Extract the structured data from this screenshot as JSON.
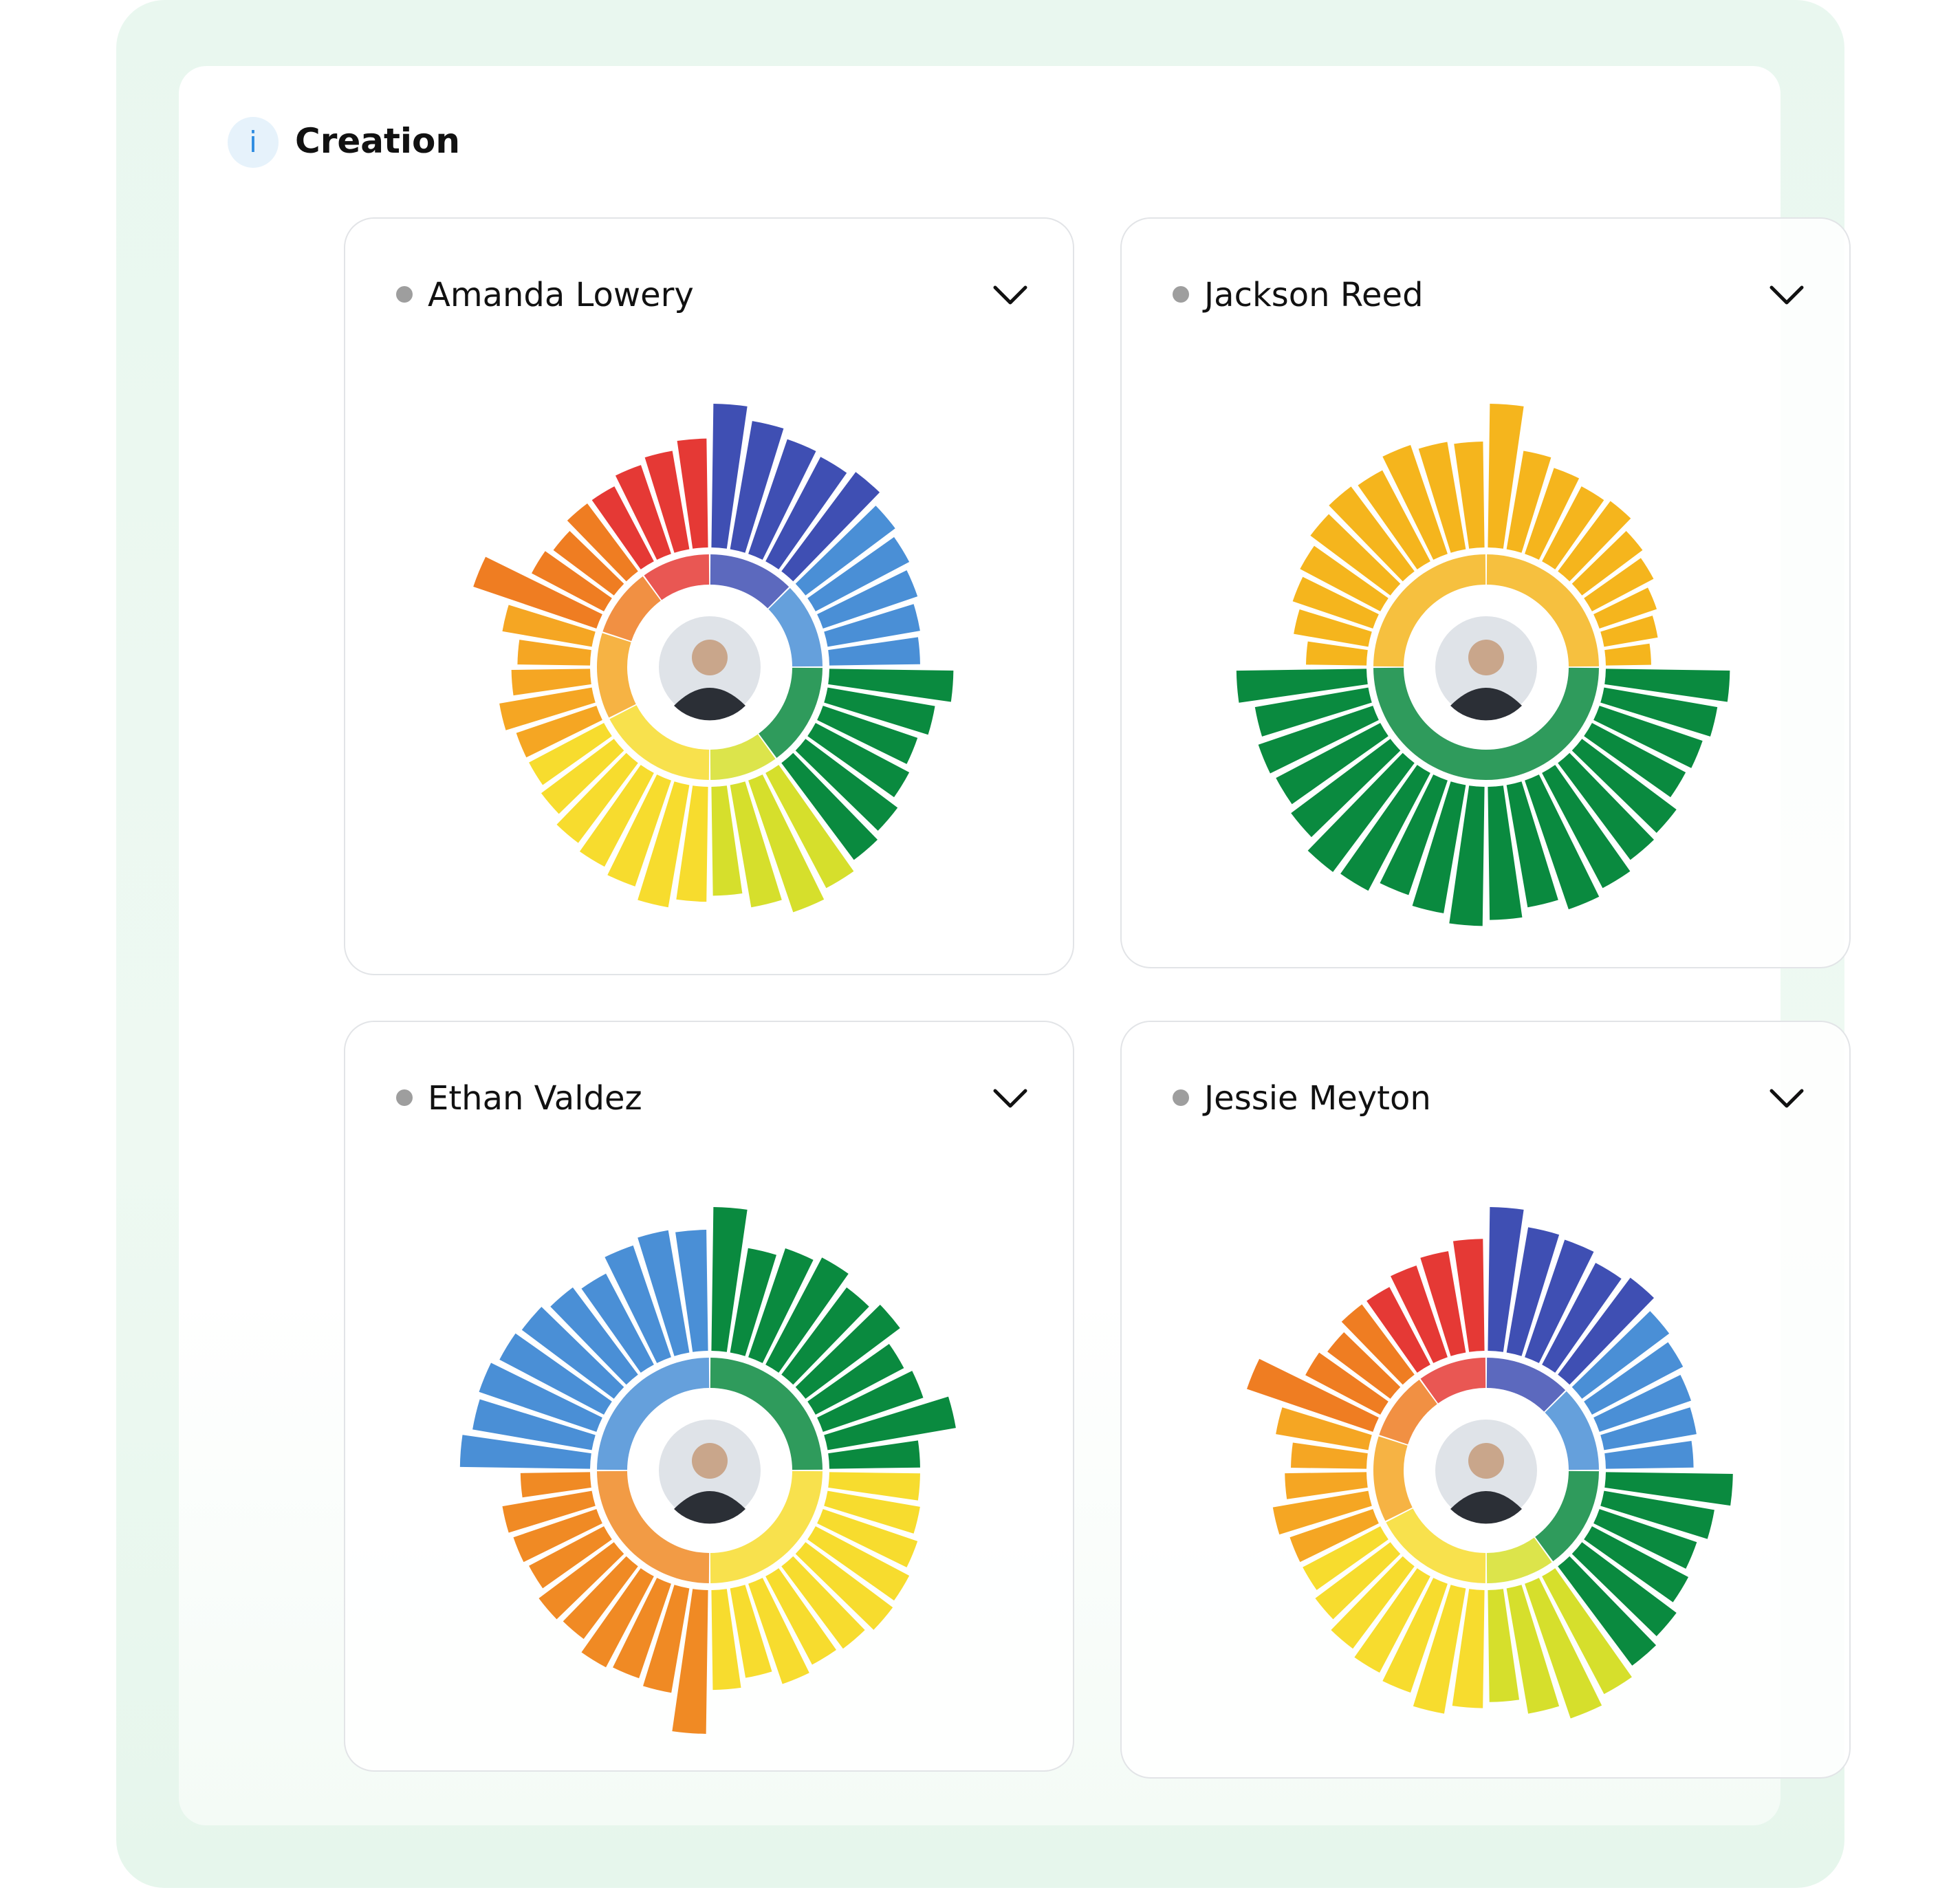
{
  "header": {
    "title": "Creation"
  },
  "chart_data": [
    {
      "type": "radial-bar",
      "title": "Amanda Lowery",
      "series": [
        {
          "color": "#3f4fb3",
          "values": [
            95,
            86,
            80,
            78,
            82
          ]
        },
        {
          "color": "#4a8fd6",
          "values": [
            74,
            70,
            66,
            62,
            60
          ]
        },
        {
          "color": "#0a8a3f",
          "values": [
            82,
            72,
            66,
            70,
            76,
            80
          ]
        },
        {
          "color": "#d6df2c",
          "values": [
            86,
            92,
            82,
            72
          ]
        },
        {
          "color": "#f7dc2e",
          "values": [
            76,
            82,
            74,
            70,
            66,
            60,
            56
          ]
        },
        {
          "color": "#f5a623",
          "values": [
            56,
            62,
            52,
            48,
            60
          ]
        },
        {
          "color": "#ef7d22",
          "values": [
            86,
            54,
            50,
            56
          ]
        },
        {
          "color": "#e53935",
          "values": [
            56,
            62,
            66,
            72
          ]
        }
      ]
    },
    {
      "type": "radial-bar",
      "title": "Jackson Reed",
      "series": [
        {
          "color": "#f5b51d",
          "values": [
            95,
            66,
            60,
            56,
            58,
            50,
            46,
            40,
            36,
            30
          ]
        },
        {
          "color": "#0a8a3f",
          "values": [
            82,
            76,
            72,
            70,
            78,
            80,
            86,
            90,
            82,
            88,
            92,
            86,
            80,
            88,
            90,
            82,
            78,
            80,
            76,
            86
          ]
        },
        {
          "color": "#f5b51d",
          "values": [
            40,
            50,
            56,
            60,
            66,
            70,
            68,
            76,
            72,
            70
          ]
        }
      ]
    },
    {
      "type": "radial-bar",
      "title": "Ethan Valdez",
      "series": [
        {
          "color": "#0a8a3f",
          "values": [
            95,
            70,
            76,
            80,
            72,
            78,
            66,
            70,
            86,
            60
          ]
        },
        {
          "color": "#f7dc2e",
          "values": [
            60,
            62,
            66,
            70,
            72,
            68,
            66,
            70,
            60,
            66
          ]
        },
        {
          "color": "#f08a24",
          "values": [
            95,
            70,
            66,
            68,
            60,
            62,
            56,
            58,
            60,
            46
          ]
        },
        {
          "color": "#4a8fd6",
          "values": [
            86,
            80,
            82,
            78,
            76,
            72,
            68,
            78,
            82,
            80
          ]
        }
      ]
    },
    {
      "type": "radial-bar",
      "title": "Jessie Meyton",
      "series": [
        {
          "color": "#3f4fb3",
          "values": [
            95,
            84,
            82,
            76,
            80
          ]
        },
        {
          "color": "#4a8fd6",
          "values": [
            72,
            68,
            64,
            62,
            58
          ]
        },
        {
          "color": "#0a8a3f",
          "values": [
            84,
            74,
            68,
            72,
            78,
            82
          ]
        },
        {
          "color": "#d6df2c",
          "values": [
            88,
            94,
            84,
            74
          ]
        },
        {
          "color": "#f7dc2e",
          "values": [
            78,
            84,
            76,
            72,
            68,
            62,
            58
          ]
        },
        {
          "color": "#f5a623",
          "values": [
            58,
            64,
            54,
            50,
            62
          ]
        },
        {
          "color": "#ef7d22",
          "values": [
            88,
            56,
            52,
            58
          ]
        },
        {
          "color": "#e53935",
          "values": [
            58,
            64,
            68,
            74
          ]
        }
      ]
    }
  ]
}
